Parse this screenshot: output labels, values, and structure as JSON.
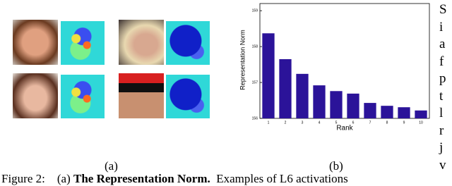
{
  "chart_data": {
    "type": "bar",
    "ylabel": "Representation Norm",
    "xlabel": "Rank",
    "categories": [
      "1",
      "2",
      "3",
      "4",
      "5",
      "6",
      "7",
      "8",
      "9",
      "10"
    ],
    "values": [
      158.37,
      157.65,
      157.24,
      156.92,
      156.76,
      156.69,
      156.43,
      156.35,
      156.31,
      156.22
    ],
    "color": "#2b1399",
    "ylim": [
      156,
      159.2
    ],
    "yticks": [
      156,
      157,
      158,
      159
    ],
    "grid": false
  },
  "subfigure_labels": [
    "(a)",
    "(b)"
  ],
  "caption": {
    "label": "Figure 2:",
    "part": "(a)",
    "title": "The Representation Norm.",
    "text": "Examples of L6 activations"
  },
  "side_text": [
    "S",
    "i",
    "a",
    "f",
    "p",
    "t",
    "l",
    "r",
    "j",
    "v"
  ]
}
